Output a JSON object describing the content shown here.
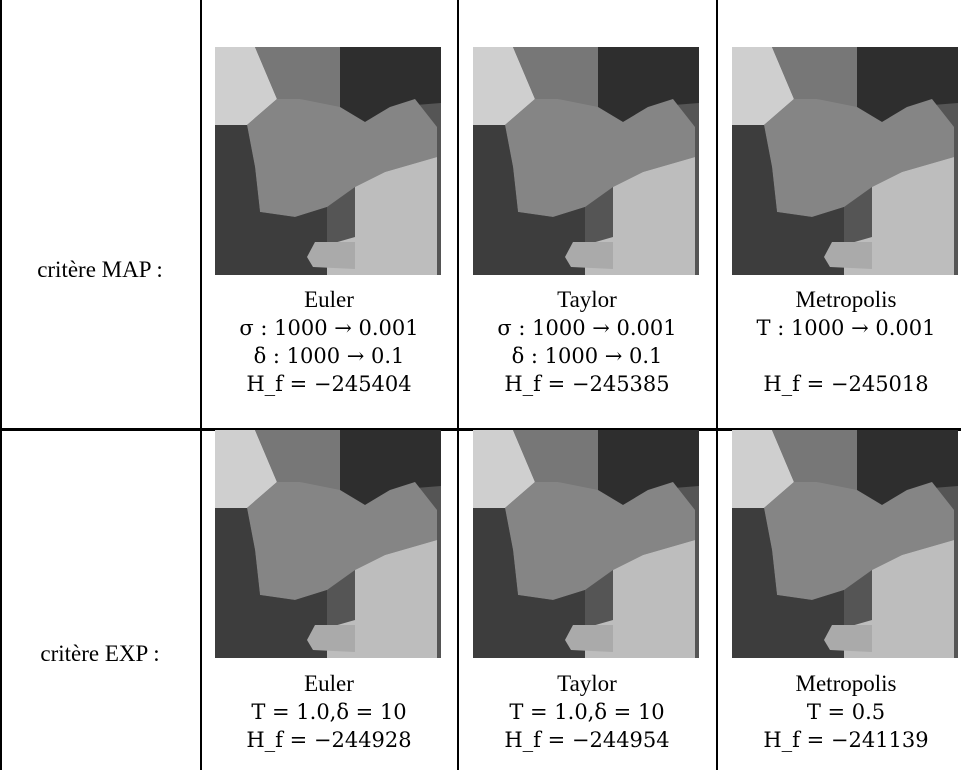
{
  "rows": [
    {
      "label": "critère MAP :",
      "cells": [
        {
          "method": "Euler",
          "params": [
            "σ : 1000 → 0.001",
            "δ : 1000 → 0.1"
          ],
          "energy": "H_f = −245404"
        },
        {
          "method": "Taylor",
          "params": [
            "σ : 1000 → 0.001",
            "δ : 1000 → 0.1"
          ],
          "energy": "H_f = −245385"
        },
        {
          "method": "Metropolis",
          "params": [
            "T : 1000 → 0.001",
            ""
          ],
          "energy": "H_f = −245018"
        }
      ]
    },
    {
      "label": "critère EXP :",
      "cells": [
        {
          "method": "Euler",
          "params": [
            "T = 1.0,δ = 10"
          ],
          "energy": "H_f = −244928"
        },
        {
          "method": "Taylor",
          "params": [
            "T = 1.0,δ = 10"
          ],
          "energy": "H_f = −244954"
        },
        {
          "method": "Metropolis",
          "params": [
            "T = 0.5"
          ],
          "energy": "H_f = −241139"
        }
      ]
    }
  ]
}
